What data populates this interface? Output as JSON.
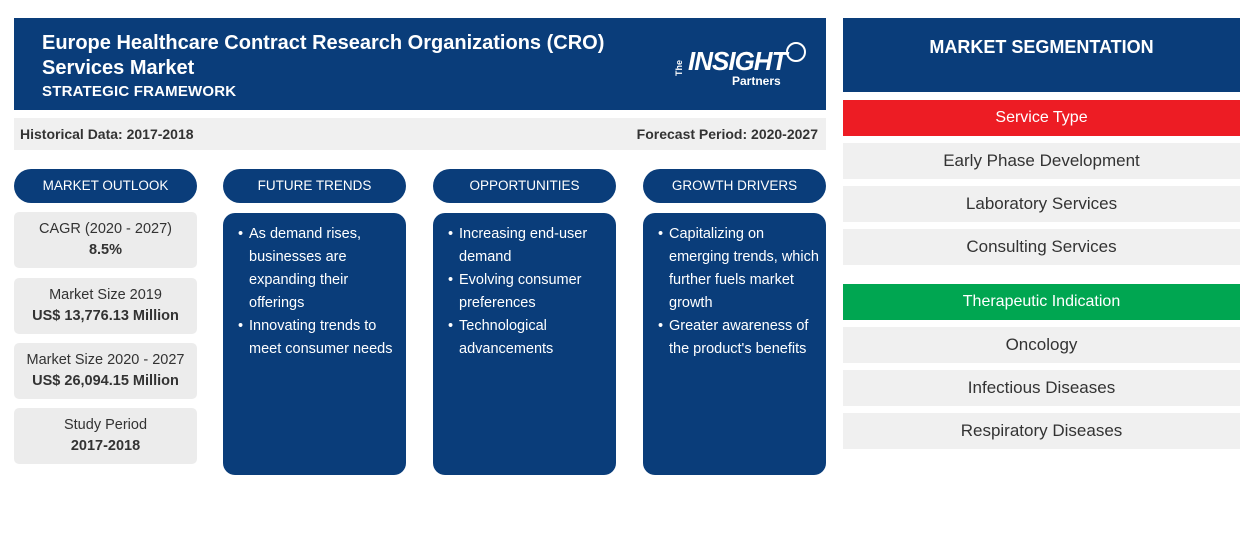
{
  "header": {
    "title": "Europe Healthcare Contract Research Organizations (CRO) Services Market",
    "subtitle": "STRATEGIC FRAMEWORK",
    "logo": {
      "the": "The",
      "insight": "INSIGHT",
      "partners": "Partners"
    }
  },
  "periods": {
    "historical": "Historical Data: 2017-2018",
    "forecast": "Forecast Period: 2020-2027"
  },
  "columns": {
    "market_outlook": "MARKET OUTLOOK",
    "future_trends": "FUTURE TRENDS",
    "opportunities": "OPPORTUNITIES",
    "growth_drivers": "GROWTH DRIVERS"
  },
  "market_outlook": [
    {
      "label": "CAGR (2020 - 2027)",
      "value": "8.5%"
    },
    {
      "label": "Market Size 2019",
      "value": "US$ 13,776.13 Million"
    },
    {
      "label": "Market Size 2020 - 2027",
      "value": "US$ 26,094.15 Million"
    },
    {
      "label": "Study Period",
      "value": "2017-2018"
    }
  ],
  "future_trends": [
    "As demand rises, businesses are expanding their offerings",
    "Innovating trends to meet consumer needs"
  ],
  "opportunities": [
    "Increasing end-user demand",
    "Evolving consumer preferences",
    "Technological advancements"
  ],
  "growth_drivers": [
    "Capitalizing on emerging trends, which further fuels market growth",
    "Greater awareness of the product's benefits"
  ],
  "segmentation": {
    "title": "MARKET SEGMENTATION",
    "groups": [
      {
        "name": "Service Type",
        "color": "#ed1c24",
        "items": [
          "Early Phase Development",
          "Laboratory Services",
          "Consulting Services"
        ]
      },
      {
        "name": "Therapeutic Indication",
        "color": "#00a651",
        "items": [
          "Oncology",
          "Infectious Diseases",
          "Respiratory Diseases"
        ]
      }
    ]
  }
}
